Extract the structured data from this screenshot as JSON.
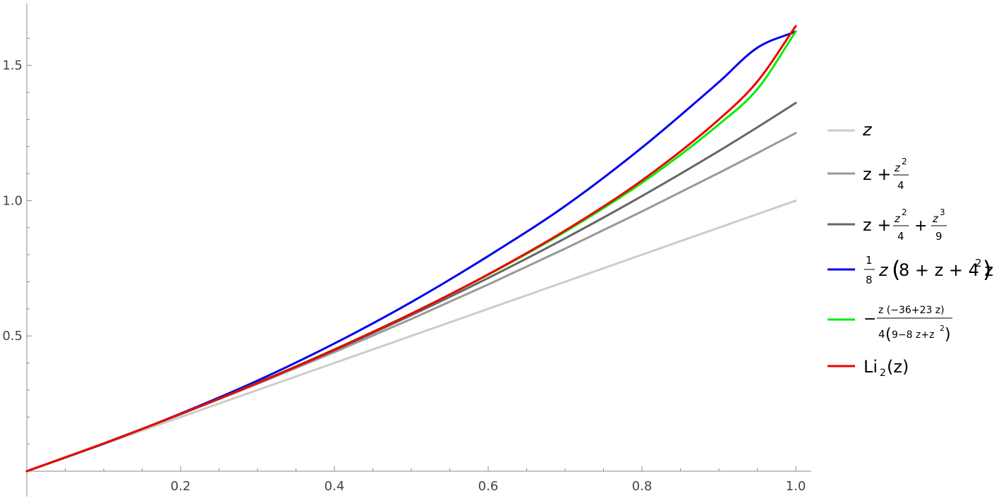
{
  "chart_data": {
    "type": "line",
    "title": "",
    "xlabel": "",
    "ylabel": "",
    "xlim": [
      0,
      1.0
    ],
    "ylim": [
      0,
      1.645
    ],
    "x_ticks": [
      0.2,
      0.4,
      0.6,
      0.8,
      1.0
    ],
    "x_tick_labels": [
      "0.2",
      "0.4",
      "0.6",
      "0.8",
      "1.0"
    ],
    "y_ticks": [
      0.5,
      1.0,
      1.5
    ],
    "y_tick_labels": [
      "0.5",
      "1.0",
      "1.5"
    ],
    "grid": false,
    "legend_position": "right",
    "x": [
      0,
      0.1,
      0.2,
      0.3,
      0.4,
      0.5,
      0.6,
      0.7,
      0.8,
      0.9,
      0.95,
      1.0
    ],
    "series": [
      {
        "id": "s1",
        "legend_parts": [
          "z"
        ],
        "color": "#cccccc",
        "values": [
          0,
          0.1,
          0.2,
          0.3,
          0.4,
          0.5,
          0.6,
          0.7,
          0.8,
          0.9,
          0.95,
          1.0
        ]
      },
      {
        "id": "s2",
        "legend_parts": [
          "z +",
          "z",
          "2",
          "4"
        ],
        "color": "#999999",
        "values": [
          0,
          0.1025,
          0.21,
          0.3225,
          0.44,
          0.5625,
          0.69,
          0.8225,
          0.96,
          1.1025,
          1.1756,
          1.25
        ]
      },
      {
        "id": "s3",
        "legend_parts": [
          "z +",
          "z",
          "2",
          "4",
          "+",
          "z",
          "3",
          "9"
        ],
        "color": "#666666",
        "values": [
          0,
          0.1026,
          0.2109,
          0.3255,
          0.4471,
          0.5764,
          0.714,
          0.8606,
          1.0169,
          1.1835,
          1.2709,
          1.3611
        ]
      },
      {
        "id": "s4",
        "legend_parts": [
          "1",
          "8",
          "z",
          "(",
          "8 + z + 4 z",
          "2",
          ")"
        ],
        "color": "#0000ee",
        "values": [
          0,
          0.1018,
          0.213,
          0.3347,
          0.472,
          0.625,
          0.795,
          0.98,
          1.196,
          1.438,
          1.565,
          1.625
        ]
      },
      {
        "id": "s5",
        "legend_parts": [
          "−",
          "z (−36+23 z)",
          "4",
          "(",
          "9−8 z+z",
          "2",
          ")"
        ],
        "color": "#00ee00",
        "values": [
          0,
          0.1026,
          0.2112,
          0.3268,
          0.4503,
          0.5825,
          0.7262,
          0.885,
          1.066,
          1.282,
          1.412,
          1.625
        ]
      },
      {
        "id": "s6",
        "legend_parts": [
          "Li",
          "2",
          "(z)"
        ],
        "color": "#ee0000",
        "values": [
          0,
          0.1026,
          0.2116,
          0.3261,
          0.4493,
          0.5822,
          0.7275,
          0.8893,
          1.0747,
          1.2998,
          1.44,
          1.6449
        ]
      }
    ]
  }
}
